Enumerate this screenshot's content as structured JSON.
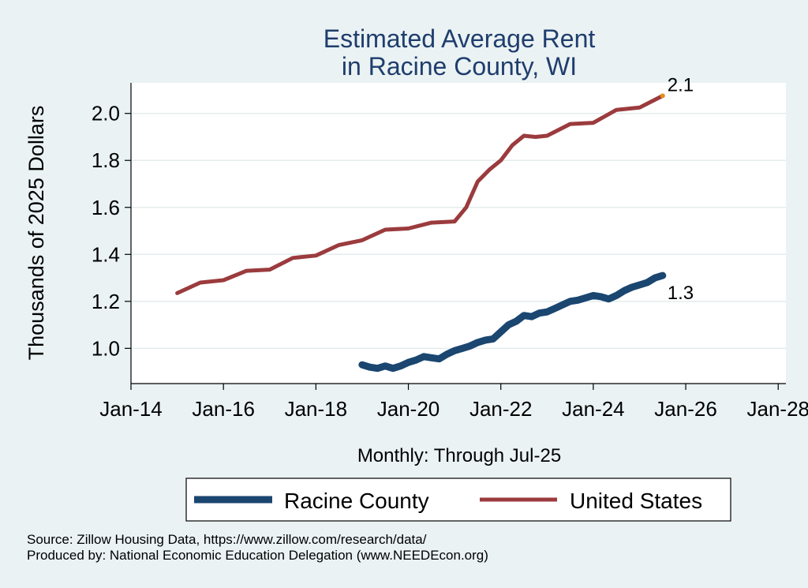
{
  "chart_data": {
    "type": "line",
    "title": [
      "Estimated Average Rent",
      "in Racine County, WI"
    ],
    "ylabel": "Thousands of 2025 Dollars",
    "xlabel": "Monthly: Through Jul-25",
    "ylim": [
      0.85,
      2.13
    ],
    "xlim": [
      "2014-01",
      "2028-03"
    ],
    "y_ticks": [
      {
        "value": 1.0,
        "label": "1.0"
      },
      {
        "value": 1.2,
        "label": "1.2"
      },
      {
        "value": 1.4,
        "label": "1.4"
      },
      {
        "value": 1.6,
        "label": "1.6"
      },
      {
        "value": 1.8,
        "label": "1.8"
      },
      {
        "value": 2.0,
        "label": "2.0"
      }
    ],
    "x_ticks": [
      {
        "value": "2014-01",
        "label": "Jan-14"
      },
      {
        "value": "2016-01",
        "label": "Jan-16"
      },
      {
        "value": "2018-01",
        "label": "Jan-18"
      },
      {
        "value": "2020-01",
        "label": "Jan-20"
      },
      {
        "value": "2022-01",
        "label": "Jan-22"
      },
      {
        "value": "2024-01",
        "label": "Jan-24"
      },
      {
        "value": "2026-01",
        "label": "Jan-26"
      },
      {
        "value": "2028-01",
        "label": "Jan-28"
      }
    ],
    "grid": true,
    "legend_position": "bottom",
    "series": [
      {
        "name": "Racine County",
        "color": "#1a4670",
        "end_label": "1.3",
        "points": [
          [
            "2019-01",
            0.93
          ],
          [
            "2019-03",
            0.92
          ],
          [
            "2019-05",
            0.915
          ],
          [
            "2019-07",
            0.925
          ],
          [
            "2019-09",
            0.915
          ],
          [
            "2019-11",
            0.925
          ],
          [
            "2020-01",
            0.94
          ],
          [
            "2020-03",
            0.95
          ],
          [
            "2020-05",
            0.965
          ],
          [
            "2020-07",
            0.96
          ],
          [
            "2020-09",
            0.955
          ],
          [
            "2020-11",
            0.975
          ],
          [
            "2021-01",
            0.99
          ],
          [
            "2021-03",
            1.0
          ],
          [
            "2021-05",
            1.01
          ],
          [
            "2021-07",
            1.025
          ],
          [
            "2021-09",
            1.035
          ],
          [
            "2021-11",
            1.04
          ],
          [
            "2022-01",
            1.07
          ],
          [
            "2022-03",
            1.1
          ],
          [
            "2022-05",
            1.115
          ],
          [
            "2022-07",
            1.14
          ],
          [
            "2022-09",
            1.135
          ],
          [
            "2022-11",
            1.15
          ],
          [
            "2023-01",
            1.155
          ],
          [
            "2023-03",
            1.17
          ],
          [
            "2023-05",
            1.185
          ],
          [
            "2023-07",
            1.2
          ],
          [
            "2023-09",
            1.205
          ],
          [
            "2023-11",
            1.215
          ],
          [
            "2024-01",
            1.225
          ],
          [
            "2024-03",
            1.22
          ],
          [
            "2024-05",
            1.21
          ],
          [
            "2024-07",
            1.225
          ],
          [
            "2024-09",
            1.245
          ],
          [
            "2024-11",
            1.26
          ],
          [
            "2025-01",
            1.27
          ],
          [
            "2025-03",
            1.28
          ],
          [
            "2025-05",
            1.3
          ],
          [
            "2025-07",
            1.31
          ]
        ]
      },
      {
        "name": "United States",
        "color": "#9b3b3d",
        "end_label": "2.1",
        "points": [
          [
            "2015-01",
            1.235
          ],
          [
            "2015-07",
            1.28
          ],
          [
            "2016-01",
            1.29
          ],
          [
            "2016-07",
            1.33
          ],
          [
            "2017-01",
            1.335
          ],
          [
            "2017-07",
            1.385
          ],
          [
            "2018-01",
            1.395
          ],
          [
            "2018-07",
            1.44
          ],
          [
            "2019-01",
            1.46
          ],
          [
            "2019-07",
            1.505
          ],
          [
            "2020-01",
            1.51
          ],
          [
            "2020-07",
            1.535
          ],
          [
            "2021-01",
            1.54
          ],
          [
            "2021-04",
            1.6
          ],
          [
            "2021-07",
            1.71
          ],
          [
            "2021-10",
            1.76
          ],
          [
            "2022-01",
            1.8
          ],
          [
            "2022-04",
            1.865
          ],
          [
            "2022-07",
            1.905
          ],
          [
            "2022-10",
            1.9
          ],
          [
            "2023-01",
            1.905
          ],
          [
            "2023-07",
            1.955
          ],
          [
            "2024-01",
            1.96
          ],
          [
            "2024-07",
            2.015
          ],
          [
            "2025-01",
            2.025
          ],
          [
            "2025-07",
            2.075
          ]
        ]
      }
    ]
  },
  "source_note": "Source: Zillow Housing Data, https://www.zillow.com/research/data/",
  "produced_note": "Produced by: National Economic Education Delegation (www.NEEDEcon.org)"
}
